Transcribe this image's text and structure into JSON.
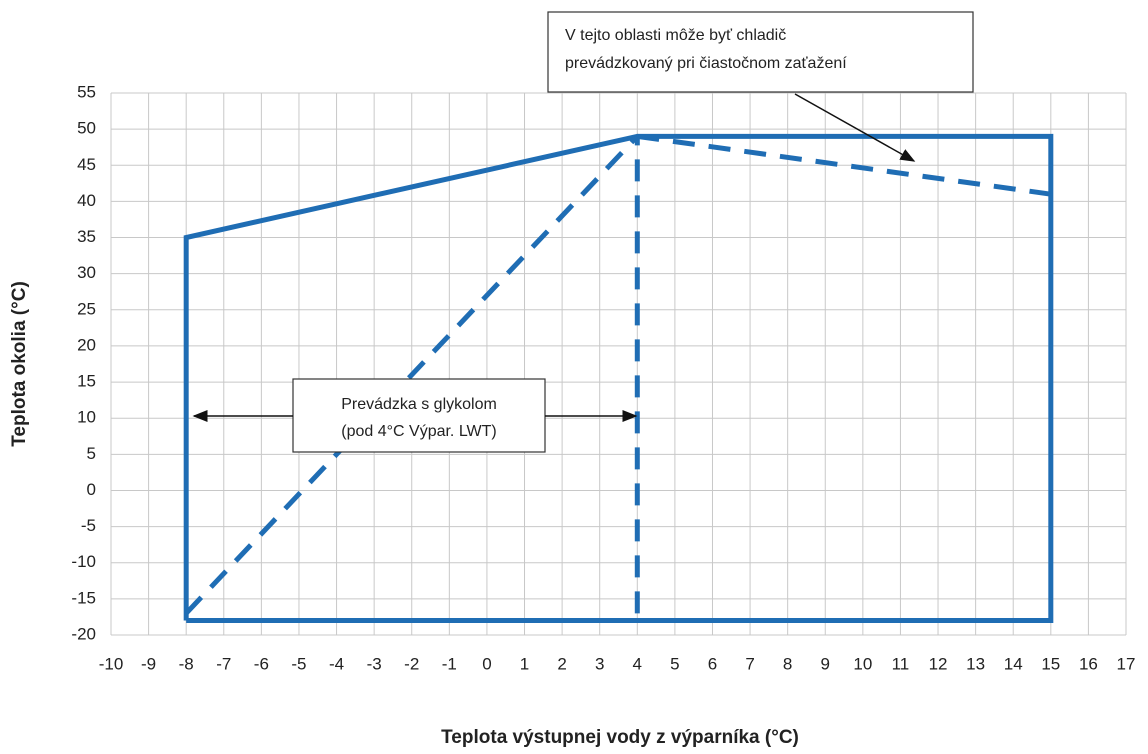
{
  "chart_data": {
    "type": "line",
    "x_label": "Teplota výstupnej vody z výparníka (°C)",
    "y_label": "Teplota okolia (°C)",
    "xlim": [
      -10,
      17
    ],
    "ylim": [
      -20,
      55
    ],
    "xticks": [
      -10,
      -9,
      -8,
      -7,
      -6,
      -5,
      -4,
      -3,
      -2,
      -1,
      0,
      1,
      2,
      3,
      4,
      5,
      6,
      7,
      8,
      9,
      10,
      11,
      12,
      13,
      14,
      15,
      16,
      17
    ],
    "yticks": [
      -20,
      -15,
      -10,
      -5,
      0,
      5,
      10,
      15,
      20,
      25,
      30,
      35,
      40,
      45,
      50,
      55
    ],
    "grid": true,
    "series": [
      {
        "color": "#1f6db4",
        "dashed": false,
        "x": [
          -8,
          -8,
          4,
          15,
          15,
          -8
        ],
        "values": [
          -18,
          35,
          49,
          49,
          -18,
          -18
        ]
      },
      {
        "color": "#1f6db4",
        "dashed": true,
        "x": [
          -8,
          4
        ],
        "values": [
          -17,
          49
        ]
      },
      {
        "color": "#1f6db4",
        "dashed": true,
        "x": [
          4,
          4
        ],
        "values": [
          -17,
          49
        ]
      },
      {
        "color": "#1f6db4",
        "dashed": true,
        "x": [
          4,
          15
        ],
        "values": [
          49,
          41
        ]
      }
    ],
    "annotations": [
      {
        "lines": [
          "V tejto oblasti môže byť chladič",
          "prevádzkovaný pri čiastočnom zaťažení"
        ]
      },
      {
        "lines": [
          "Prevádzka s glykolom",
          "(pod 4°C Výpar. LWT)"
        ]
      }
    ]
  }
}
